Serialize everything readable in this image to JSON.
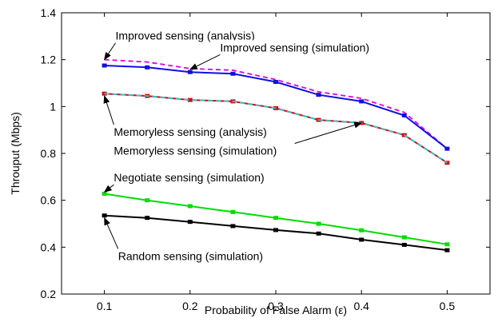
{
  "chart_data": {
    "type": "line",
    "title": "",
    "xlabel": "Probability of False Alarm (ε)",
    "ylabel": "Throuput (Mbps)",
    "xlim": [
      0.05,
      0.55
    ],
    "ylim": [
      0.2,
      1.4
    ],
    "xticks": [
      0.1,
      0.2,
      0.3,
      0.4,
      0.5
    ],
    "xtick_labels": [
      "0.1",
      "0.2",
      "0.3",
      "0.4",
      "0.5"
    ],
    "yticks": [
      0.2,
      0.4,
      0.6,
      0.8,
      1.0,
      1.2,
      1.4
    ],
    "ytick_labels": [
      "0.2",
      "0.4",
      "0.6",
      "0.8",
      "1",
      "1.2",
      "1.4"
    ],
    "grid": false,
    "legend": "none",
    "x": [
      0.1,
      0.15,
      0.2,
      0.25,
      0.3,
      0.35,
      0.4,
      0.45,
      0.5
    ],
    "series": [
      {
        "name": "Improved sensing (analysis)",
        "style": "dashed",
        "color": "#e000e0",
        "markers": false,
        "values": [
          1.2,
          1.19,
          1.162,
          1.155,
          1.115,
          1.063,
          1.035,
          0.975,
          0.82
        ]
      },
      {
        "name": "Improved sensing (simulation)",
        "style": "solid",
        "color": "#1010e0",
        "markers": true,
        "values": [
          1.175,
          1.167,
          1.147,
          1.14,
          1.105,
          1.05,
          1.022,
          0.962,
          0.82
        ]
      },
      {
        "name": "Memoryless sensing (analysis)",
        "style": "solid",
        "color": "#d01010",
        "markers": true,
        "values": [
          1.055,
          1.045,
          1.028,
          1.022,
          0.993,
          0.943,
          0.93,
          0.878,
          0.76
        ]
      },
      {
        "name": "Memoryless sensing (simulation)",
        "style": "dashed",
        "color": "#30c8d8",
        "markers": false,
        "values": [
          1.055,
          1.045,
          1.028,
          1.022,
          0.993,
          0.943,
          0.93,
          0.878,
          0.76
        ]
      },
      {
        "name": "Negotiate sensing (simulation)",
        "style": "solid",
        "color": "#00dd00",
        "markers": true,
        "values": [
          0.628,
          0.6,
          0.575,
          0.55,
          0.525,
          0.5,
          0.472,
          0.442,
          0.412
        ]
      },
      {
        "name": "Random sensing (simulation)",
        "style": "solid",
        "color": "#000000",
        "markers": true,
        "values": [
          0.535,
          0.525,
          0.508,
          0.49,
          0.473,
          0.458,
          0.432,
          0.41,
          0.387
        ]
      }
    ],
    "annotations": [
      {
        "text": "Improved sensing (analysis)",
        "label_x": 0.113,
        "label_y": 1.285,
        "point_x": 0.1,
        "point_y": 1.2
      },
      {
        "text": "Improved sensing (simulation)",
        "label_x": 0.235,
        "label_y": 1.235,
        "point_x": 0.2,
        "point_y": 1.158
      },
      {
        "text": "Memoryless sensing (analysis)",
        "label_x": 0.111,
        "label_y": 0.875,
        "point_x": 0.1,
        "point_y": 1.045
      },
      {
        "text": "Memoryless sensing (simulation)",
        "label_x": 0.111,
        "label_y": 0.795,
        "point_x": 0.4,
        "point_y": 0.93
      },
      {
        "text": "Negotiate sensing (simulation)",
        "label_x": 0.111,
        "label_y": 0.68,
        "point_x": 0.1,
        "point_y": 0.635
      },
      {
        "text": "Random sensing (simulation)",
        "label_x": 0.116,
        "label_y": 0.345,
        "point_x": 0.1,
        "point_y": 0.525
      }
    ]
  }
}
